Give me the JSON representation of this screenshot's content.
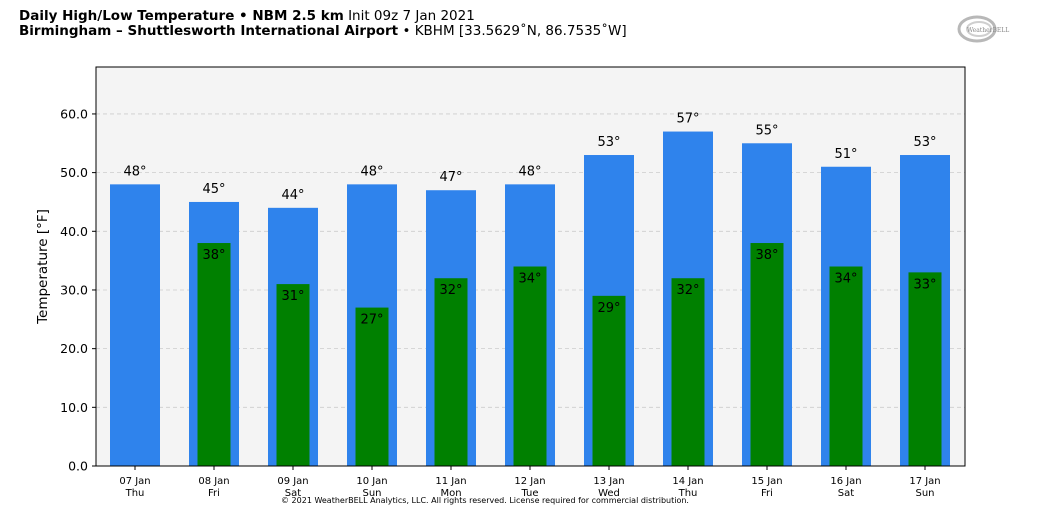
{
  "header": {
    "line1_bold": "Daily High/Low Temperature • NBM 2.5 km",
    "line1_normal": "Init 09z 7 Jan 2021",
    "line2_bold": "Birmingham – Shuttlesworth International Airport",
    "line2_normal": "• KBHM [33.5629˚N, 86.7535˚W]"
  },
  "logo_text": "WeatherBELL",
  "copyright": "© 2021 WeatherBELL Analytics, LLC. All rights reserved. License required for commercial distribution.",
  "colors": {
    "high": "#2f83ec",
    "low": "#008000",
    "plot_bg": "#f4f4f4",
    "grid": "#cccccc"
  },
  "chart_data": {
    "type": "bar",
    "ylabel": "Temperature [°F]",
    "ylim": [
      0,
      68
    ],
    "yticks": [
      "0.0",
      "10.0",
      "20.0",
      "30.0",
      "40.0",
      "50.0",
      "60.0"
    ],
    "grid": true,
    "categories": [
      {
        "date": "07 Jan",
        "day": "Thu"
      },
      {
        "date": "08 Jan",
        "day": "Fri"
      },
      {
        "date": "09 Jan",
        "day": "Sat"
      },
      {
        "date": "10 Jan",
        "day": "Sun"
      },
      {
        "date": "11 Jan",
        "day": "Mon"
      },
      {
        "date": "12 Jan",
        "day": "Tue"
      },
      {
        "date": "13 Jan",
        "day": "Wed"
      },
      {
        "date": "14 Jan",
        "day": "Thu"
      },
      {
        "date": "15 Jan",
        "day": "Fri"
      },
      {
        "date": "16 Jan",
        "day": "Sat"
      },
      {
        "date": "17 Jan",
        "day": "Sun"
      }
    ],
    "series": [
      {
        "key": "high",
        "values": [
          48,
          45,
          44,
          48,
          47,
          48,
          53,
          57,
          55,
          51,
          53
        ],
        "labels": [
          "48°",
          "45°",
          "44°",
          "48°",
          "47°",
          "48°",
          "53°",
          "57°",
          "55°",
          "51°",
          "53°"
        ]
      },
      {
        "key": "low",
        "values": [
          null,
          38,
          31,
          27,
          32,
          34,
          29,
          32,
          38,
          34,
          33
        ],
        "labels": [
          "",
          "38°",
          "31°",
          "27°",
          "32°",
          "34°",
          "29°",
          "32°",
          "38°",
          "34°",
          "33°"
        ]
      }
    ]
  }
}
